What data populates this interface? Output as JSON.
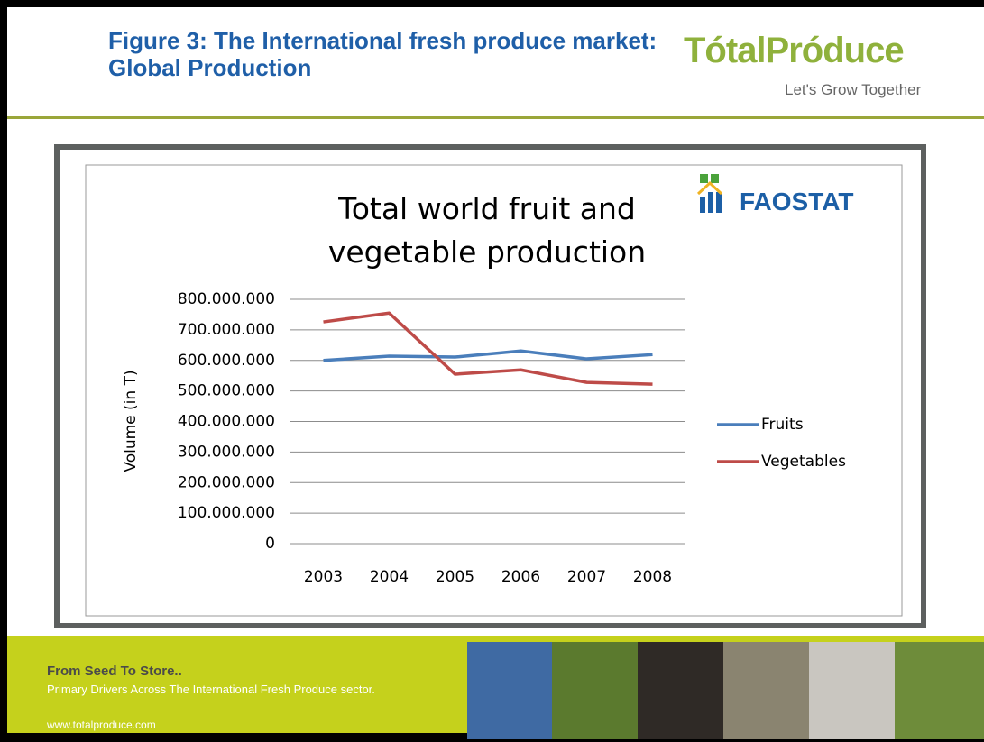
{
  "header": {
    "title": "Figure 3: The International fresh produce market: Global Production",
    "logo": "TótalPróduce",
    "tagline": "Let's Grow Together"
  },
  "source_logo": "FAOSTAT",
  "chart_data": {
    "type": "line",
    "title": "Total world fruit and vegetable production",
    "y_label": "Volume (in T)",
    "categories": [
      "2003",
      "2004",
      "2005",
      "2006",
      "2007",
      "2008"
    ],
    "series": [
      {
        "name": "Fruits",
        "color": "#4a7ebb",
        "values": [
          600000000,
          614000000,
          611000000,
          631000000,
          605000000,
          619000000
        ]
      },
      {
        "name": "Vegetables",
        "color": "#be4b48",
        "values": [
          726000000,
          755000000,
          555000000,
          569000000,
          528000000,
          522000000
        ]
      }
    ],
    "ylim": [
      0,
      800000000
    ],
    "yticks": [
      0,
      {
        "value": 100000000,
        "label": "100.000.000"
      },
      {
        "value": 200000000,
        "label": "200.000.000"
      },
      {
        "value": 300000000,
        "label": "300.000.000"
      },
      {
        "value": 400000000,
        "label": "400.000.000"
      },
      {
        "value": 500000000,
        "label": "500.000.000"
      },
      {
        "value": 600000000,
        "label": "600.000.000"
      },
      {
        "value": 700000000,
        "label": "700.000.000"
      },
      {
        "value": 800000000,
        "label": "800.000.000"
      }
    ],
    "grid": true,
    "legend": "right"
  },
  "footer": {
    "heading": "From Seed To Store..",
    "subheading": "Primary Drivers Across The International Fresh Produce sector.",
    "url": "www.totalproduce.com"
  }
}
